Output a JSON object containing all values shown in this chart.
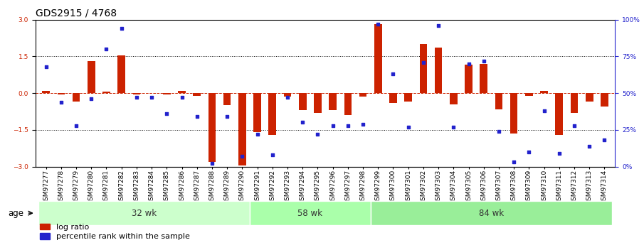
{
  "title": "GDS2915 / 4768",
  "samples": [
    "GSM97277",
    "GSM97278",
    "GSM97279",
    "GSM97280",
    "GSM97281",
    "GSM97282",
    "GSM97283",
    "GSM97284",
    "GSM97285",
    "GSM97286",
    "GSM97287",
    "GSM97288",
    "GSM97289",
    "GSM97290",
    "GSM97291",
    "GSM97292",
    "GSM97293",
    "GSM97294",
    "GSM97295",
    "GSM97296",
    "GSM97297",
    "GSM97298",
    "GSM97299",
    "GSM97300",
    "GSM97301",
    "GSM97302",
    "GSM97303",
    "GSM97304",
    "GSM97305",
    "GSM97306",
    "GSM97307",
    "GSM97308",
    "GSM97309",
    "GSM97310",
    "GSM97311",
    "GSM97312",
    "GSM97313",
    "GSM97314"
  ],
  "log_ratio": [
    0.08,
    -0.05,
    -0.35,
    1.3,
    0.05,
    1.55,
    -0.05,
    0.0,
    -0.05,
    0.1,
    -0.1,
    -2.8,
    -0.5,
    -2.95,
    -1.6,
    -1.7,
    -0.15,
    -0.7,
    -0.8,
    -0.7,
    -0.9,
    -0.15,
    2.8,
    -0.4,
    -0.35,
    2.0,
    1.85,
    -0.45,
    1.15,
    1.2,
    -0.65,
    -1.65,
    -0.1,
    0.1,
    -1.7,
    -0.8,
    -0.35,
    -0.55
  ],
  "percentile": [
    68,
    44,
    28,
    46,
    80,
    94,
    47,
    47,
    36,
    47,
    34,
    2,
    34,
    7,
    22,
    8,
    47,
    30,
    22,
    28,
    28,
    29,
    97,
    63,
    27,
    71,
    96,
    27,
    70,
    72,
    24,
    3,
    10,
    38,
    9,
    28,
    14,
    18
  ],
  "groups": [
    {
      "label": "32 wk",
      "start": 0,
      "end": 14
    },
    {
      "label": "58 wk",
      "start": 14,
      "end": 22
    },
    {
      "label": "84 wk",
      "start": 22,
      "end": 38
    }
  ],
  "bar_color": "#cc2200",
  "dot_color": "#2222cc",
  "bar_width": 0.5,
  "ylim": [
    -3,
    3
  ],
  "y2lim": [
    0,
    100
  ],
  "y_ticks": [
    -3,
    -1.5,
    0,
    1.5,
    3
  ],
  "y2_ticks": [
    0,
    25,
    50,
    75,
    100
  ],
  "y2_labels": [
    "0%",
    "25%",
    "50%",
    "75%",
    "100%"
  ],
  "group_colors": [
    "#ccffcc",
    "#aaffaa",
    "#99ee99"
  ],
  "bg_color": "#ffffff",
  "title_fontsize": 10,
  "tick_fontsize": 6.5,
  "legend_fontsize": 8,
  "xlabel": "age",
  "group_label_fontsize": 8.5
}
